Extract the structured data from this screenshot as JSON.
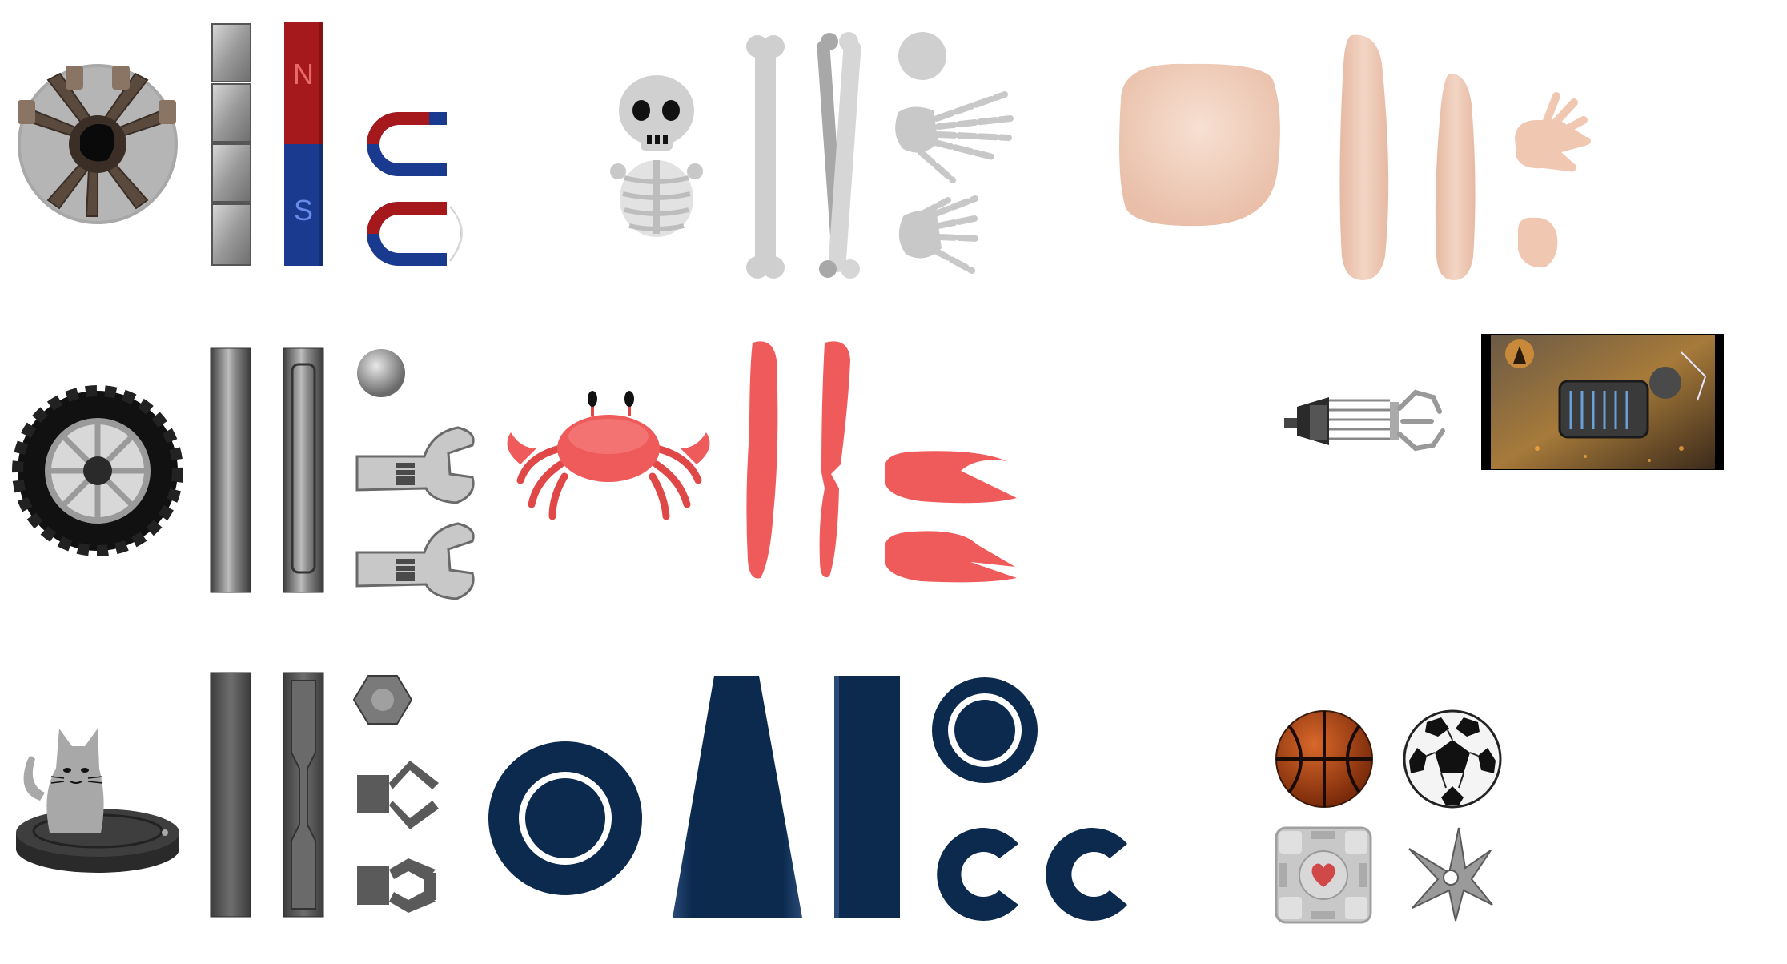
{
  "bar_magnet": {
    "north_label": "N",
    "south_label": "S"
  },
  "colors": {
    "magnet_red": "#a5181c",
    "magnet_blue": "#1a3a8f",
    "navy": "#0b2a4e",
    "crab_red": "#ef5a5a",
    "skin": "#f1d1c0",
    "bone": "#d4d4d4",
    "steel": "#8a8a8a",
    "dark_steel": "#5a5a5a"
  },
  "icons": [
    "gear-wheel-icon",
    "steel-block-stack-icon",
    "bar-magnet-icon",
    "horseshoe-magnet-icon",
    "skeleton-icon",
    "bone-icon",
    "skull-icon",
    "skeleton-hand-icon",
    "flesh-block-icon",
    "finger-icon",
    "human-hand-icon",
    "tire-icon",
    "steel-rod-icon",
    "steel-ball-icon",
    "wrench-icon",
    "crab-icon",
    "crab-leg-icon",
    "crab-claw-icon",
    "gravity-gun-icon",
    "game-artwork-icon",
    "robot-vacuum-cat-icon",
    "steel-beam-icon",
    "hex-nut-icon",
    "gripper-claw-icon",
    "navy-ring-icon",
    "navy-trapezoid-icon",
    "navy-bar-icon",
    "navy-c-shape-icon",
    "basketball-icon",
    "soccer-ball-icon",
    "companion-cube-icon",
    "shuriken-icon"
  ]
}
